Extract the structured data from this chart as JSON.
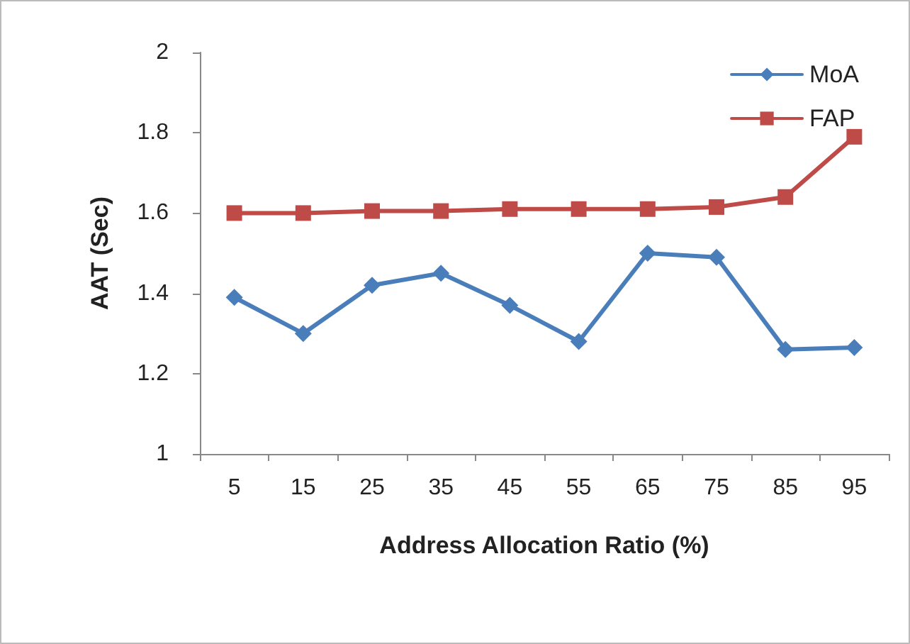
{
  "chart_data": {
    "type": "line",
    "xlabel": "Address Allocation Ratio (%)",
    "ylabel": "AAT (Sec)",
    "categories": [
      "5",
      "15",
      "25",
      "35",
      "45",
      "55",
      "65",
      "75",
      "85",
      "95"
    ],
    "series": [
      {
        "name": "MoA",
        "color": "#4a7ebb",
        "marker": "diamond",
        "values": [
          1.39,
          1.3,
          1.42,
          1.45,
          1.37,
          1.28,
          1.5,
          1.49,
          1.26,
          1.265
        ]
      },
      {
        "name": "FAP",
        "color": "#be4b48",
        "marker": "square",
        "values": [
          1.6,
          1.6,
          1.605,
          1.605,
          1.61,
          1.61,
          1.61,
          1.615,
          1.64,
          1.79
        ]
      }
    ],
    "ylim": [
      1,
      2
    ],
    "yticks": [
      1,
      1.2,
      1.4,
      1.6,
      1.8,
      2
    ],
    "grid": false,
    "legend": "top right"
  }
}
